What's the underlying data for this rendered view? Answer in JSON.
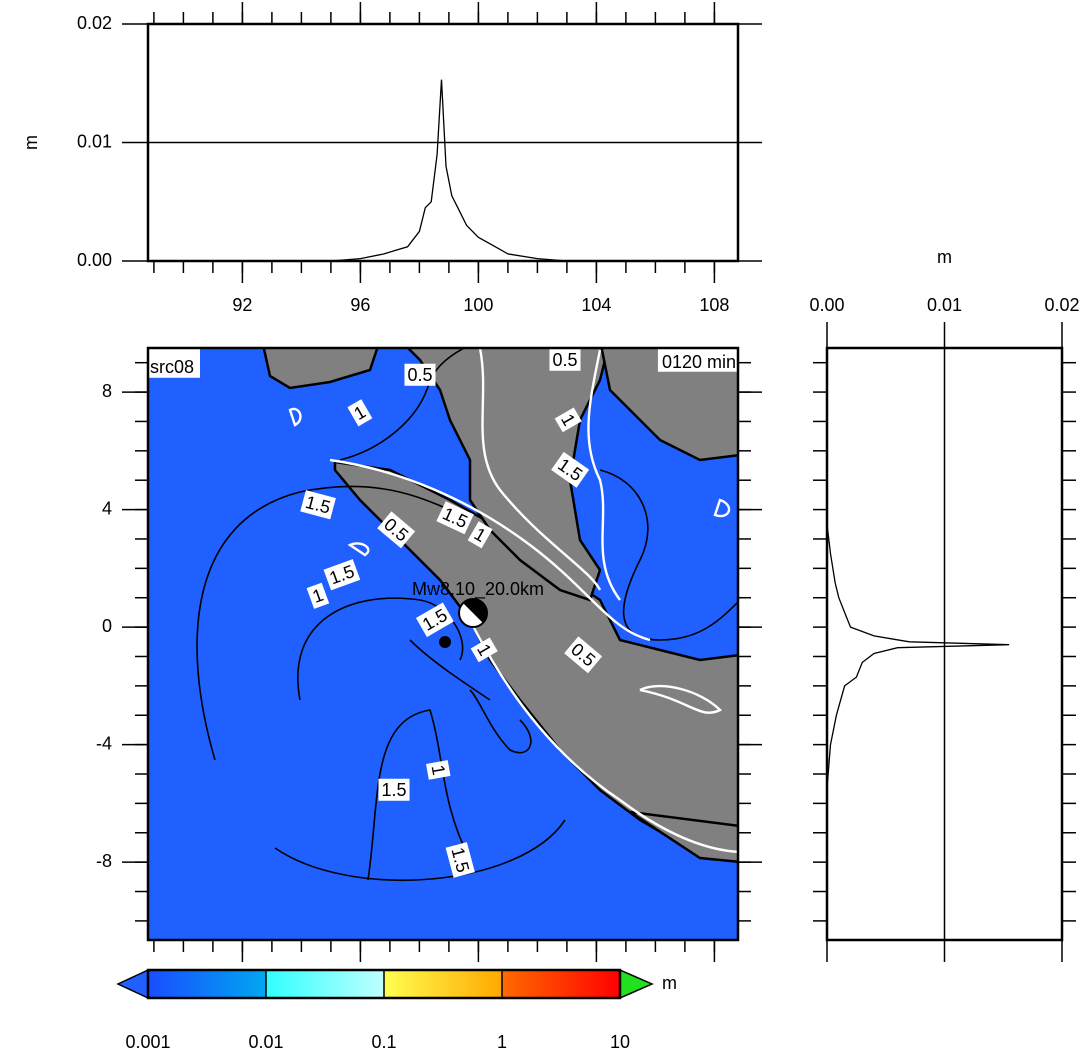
{
  "chart_data": [
    {
      "type": "line",
      "orientation": "horizontal",
      "ylabel": "m",
      "x": [
        88.8,
        95,
        96,
        96.8,
        97.2,
        97.6,
        98,
        98.2,
        98.4,
        98.6,
        98.75,
        98.9,
        99.1,
        99.3,
        99.6,
        100,
        100.5,
        101,
        102,
        103,
        108.8
      ],
      "values": [
        0,
        0,
        0.0002,
        0.0006,
        0.0009,
        0.0012,
        0.0025,
        0.0045,
        0.005,
        0.009,
        0.0153,
        0.008,
        0.0055,
        0.0045,
        0.003,
        0.002,
        0.0013,
        0.0006,
        0.0002,
        0,
        0
      ],
      "color": "#000000",
      "xlim": [
        88.8,
        108.8
      ],
      "ylim": [
        0,
        0.02
      ],
      "xticks": [
        92,
        96,
        100,
        104,
        108
      ],
      "yticks": [
        {
          "value": 0,
          "label": "0.00"
        },
        0.01,
        0.02
      ],
      "minor_step": 1,
      "grid": true
    },
    {
      "type": "line",
      "orientation": "vertical",
      "xlabel": "m",
      "y": [
        9.5,
        3.5,
        2.5,
        1.5,
        1,
        0.5,
        0,
        -0.3,
        -0.5,
        -0.6,
        -0.7,
        -0.9,
        -1.2,
        -1.7,
        -2,
        -3,
        -4,
        -5.5,
        -10.65
      ],
      "values": [
        0,
        0,
        0.0003,
        0.0007,
        0.001,
        0.0015,
        0.002,
        0.004,
        0.007,
        0.0155,
        0.006,
        0.004,
        0.003,
        0.0025,
        0.0015,
        0.0008,
        0.0003,
        0,
        0
      ],
      "color": "#000000",
      "xlim": [
        0,
        0.02
      ],
      "ylim": [
        -10.65,
        9.5
      ],
      "xticks": [
        {
          "value": 0,
          "label": "0.00"
        },
        0.01,
        0.02
      ],
      "minor_step": 1,
      "grid": true
    },
    {
      "type": "map",
      "title": "src08",
      "subtitle": "0120 min",
      "annotation": "Mw8.10_20.0km",
      "contour_labels": [
        "0.5",
        "0.5",
        "1",
        "1",
        "1.5",
        "1.5",
        "0.5",
        "1.5",
        "1",
        "1.5",
        "1",
        "1.5",
        "1",
        "0.5",
        "1",
        "1.5",
        "1.5"
      ],
      "xlim": [
        88.8,
        108.8
      ],
      "ylim": [
        -10.65,
        9.5
      ],
      "xticks": [
        92,
        96,
        100,
        104,
        108
      ],
      "yticks": [
        8,
        4,
        0,
        -4,
        -8
      ],
      "minor_step": 1,
      "ocean_color": "#2060ff",
      "land_color": "#808080"
    },
    {
      "type": "colorbar",
      "unit": "m",
      "log": true,
      "ticks": [
        0.001,
        0.01,
        0.1,
        1,
        10
      ],
      "colors": [
        [
          "#1a4cff",
          "#00a8f0"
        ],
        [
          "#30ffff",
          "#c0ffff"
        ],
        [
          "#ffff50",
          "#ffa800"
        ],
        [
          "#ff6a00",
          "#ff0000"
        ]
      ],
      "under_color": "#2060ff",
      "over_color": "#20e020"
    }
  ]
}
